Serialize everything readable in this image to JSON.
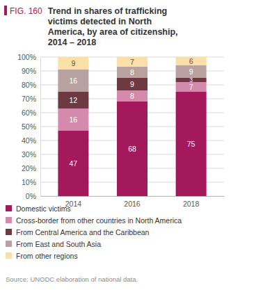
{
  "chart_data": {
    "type": "bar",
    "figure_label": "FIG. 160",
    "title": "Trend in shares of trafficking victims detected in North America, by area of citizenship, 2014 – 2018",
    "source": "Source: UNODC elaboration of national data.",
    "categories": [
      "2014",
      "2016",
      "2018"
    ],
    "stacked": true,
    "data_labels": true,
    "grid": true,
    "legend": "bottom",
    "ylim": [
      0,
      100
    ],
    "yticks": [
      {
        "value": 0,
        "label": "0%"
      },
      {
        "value": 10,
        "label": "10%"
      },
      {
        "value": 20,
        "label": "20%"
      },
      {
        "value": 30,
        "label": "30%"
      },
      {
        "value": 40,
        "label": "40%"
      },
      {
        "value": 50,
        "label": "50%"
      },
      {
        "value": 60,
        "label": "60%"
      },
      {
        "value": 70,
        "label": "70%"
      },
      {
        "value": 80,
        "label": "80%"
      },
      {
        "value": 90,
        "label": "90%"
      },
      {
        "value": 100,
        "label": "100%"
      }
    ],
    "series": [
      {
        "name": "Domestic victims",
        "color": "#a3195b",
        "values": [
          47,
          68,
          75
        ]
      },
      {
        "name": "Cross-border from other countries in North America",
        "color": "#d38aab",
        "values": [
          16,
          8,
          7
        ]
      },
      {
        "name": "From Central America and the Caribbean",
        "color": "#6c3a40",
        "values": [
          12,
          9,
          3
        ]
      },
      {
        "name": "From East and South Asia",
        "color": "#b9a19f",
        "values": [
          16,
          8,
          9
        ]
      },
      {
        "name": "From other regions",
        "color": "#fbdfa8",
        "values": [
          9,
          7,
          6
        ]
      }
    ]
  }
}
